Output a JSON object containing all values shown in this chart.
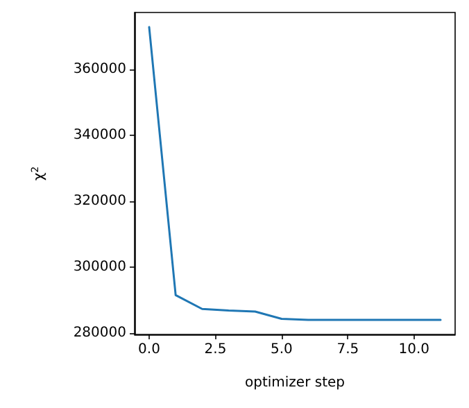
{
  "chart_data": {
    "type": "line",
    "xlabel": "optimizer step",
    "ylabel": "χ$^{2}$",
    "x": [
      0,
      1,
      2,
      3,
      4,
      5,
      6,
      7,
      8,
      9,
      10,
      11
    ],
    "series": [
      {
        "color": "#1f77b4",
        "values": [
          372900,
          291500,
          287300,
          286800,
          286500,
          284300,
          284000,
          284000,
          284000,
          284000,
          284000,
          284000
        ]
      }
    ],
    "xlim": [
      -0.55,
      11.55
    ],
    "xticks": [
      {
        "value": 0,
        "label": "0.0"
      },
      {
        "value": 2.5,
        "label": "2.5"
      },
      {
        "value": 5,
        "label": "5.0"
      },
      {
        "value": 7.5,
        "label": "7.5"
      },
      {
        "value": 10,
        "label": "10.0"
      }
    ],
    "ylim": [
      279550,
      377350
    ],
    "yticks": [
      280000,
      300000,
      320000,
      340000,
      360000
    ],
    "grid": false,
    "marker": "none",
    "line_style": "solid"
  }
}
